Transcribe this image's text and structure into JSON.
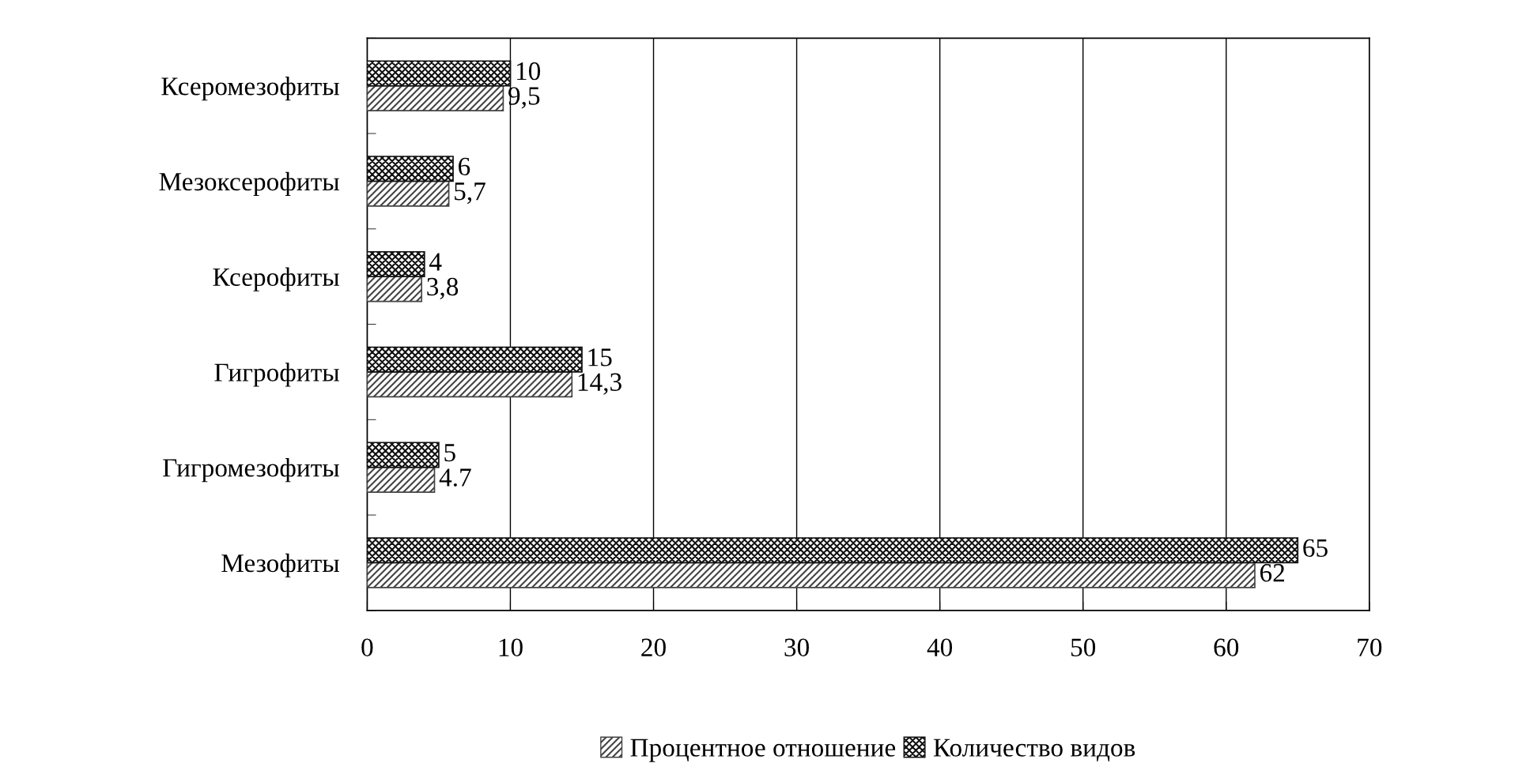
{
  "chart_data": {
    "type": "bar",
    "orientation": "horizontal",
    "categories": [
      "Ксеромезофиты",
      "Мезоксерофиты",
      "Ксерофиты",
      "Гигрофиты",
      "Гигромезофиты",
      "Мезофиты"
    ],
    "series": [
      {
        "name": "Процентное отношение",
        "color": "#444444",
        "values": [
          9.5,
          5.7,
          3.8,
          14.3,
          4.7,
          62
        ],
        "value_labels": [
          "9,5",
          "5,7",
          "3,8",
          "14,3",
          "4.7",
          "62"
        ]
      },
      {
        "name": "Количество видов",
        "color": "#111111",
        "values": [
          10,
          6,
          4,
          15,
          5,
          65
        ],
        "value_labels": [
          "10",
          "6",
          "4",
          "15",
          "5",
          "65"
        ]
      }
    ],
    "xlim": [
      0,
      70
    ],
    "xticks": [
      0,
      10,
      20,
      30,
      40,
      50,
      60,
      70
    ],
    "grid": "x",
    "legend": "bottom"
  }
}
